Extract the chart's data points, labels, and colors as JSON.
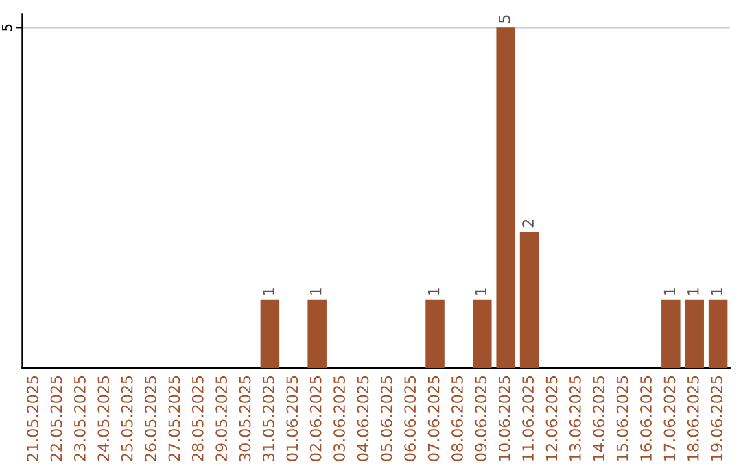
{
  "chart_data": {
    "type": "bar",
    "categories": [
      "21.05.2025",
      "22.05.2025",
      "23.05.2025",
      "24.05.2025",
      "25.05.2025",
      "26.05.2025",
      "27.05.2025",
      "28.05.2025",
      "29.05.2025",
      "30.05.2025",
      "31.05.2025",
      "01.06.2025",
      "02.06.2025",
      "03.06.2025",
      "04.06.2025",
      "05.06.2025",
      "06.06.2025",
      "07.06.2025",
      "08.06.2025",
      "09.06.2025",
      "10.06.2025",
      "11.06.2025",
      "12.06.2025",
      "13.06.2025",
      "14.06.2025",
      "15.06.2025",
      "16.06.2025",
      "17.06.2025",
      "18.06.2025",
      "19.06.2025"
    ],
    "values": [
      0,
      0,
      0,
      0,
      0,
      0,
      0,
      0,
      0,
      0,
      1,
      0,
      1,
      0,
      0,
      0,
      0,
      1,
      0,
      1,
      5,
      2,
      0,
      0,
      0,
      0,
      0,
      1,
      1,
      1
    ],
    "value_labels": [
      null,
      null,
      null,
      null,
      null,
      null,
      null,
      null,
      null,
      null,
      "1",
      null,
      "1",
      null,
      null,
      null,
      null,
      "1",
      null,
      "1",
      "5",
      "2",
      null,
      null,
      null,
      null,
      null,
      "1",
      "1",
      "1"
    ],
    "color": "#a0522d",
    "ylim": [
      0,
      5.2
    ],
    "yticks": [
      5
    ],
    "grid": "y"
  }
}
